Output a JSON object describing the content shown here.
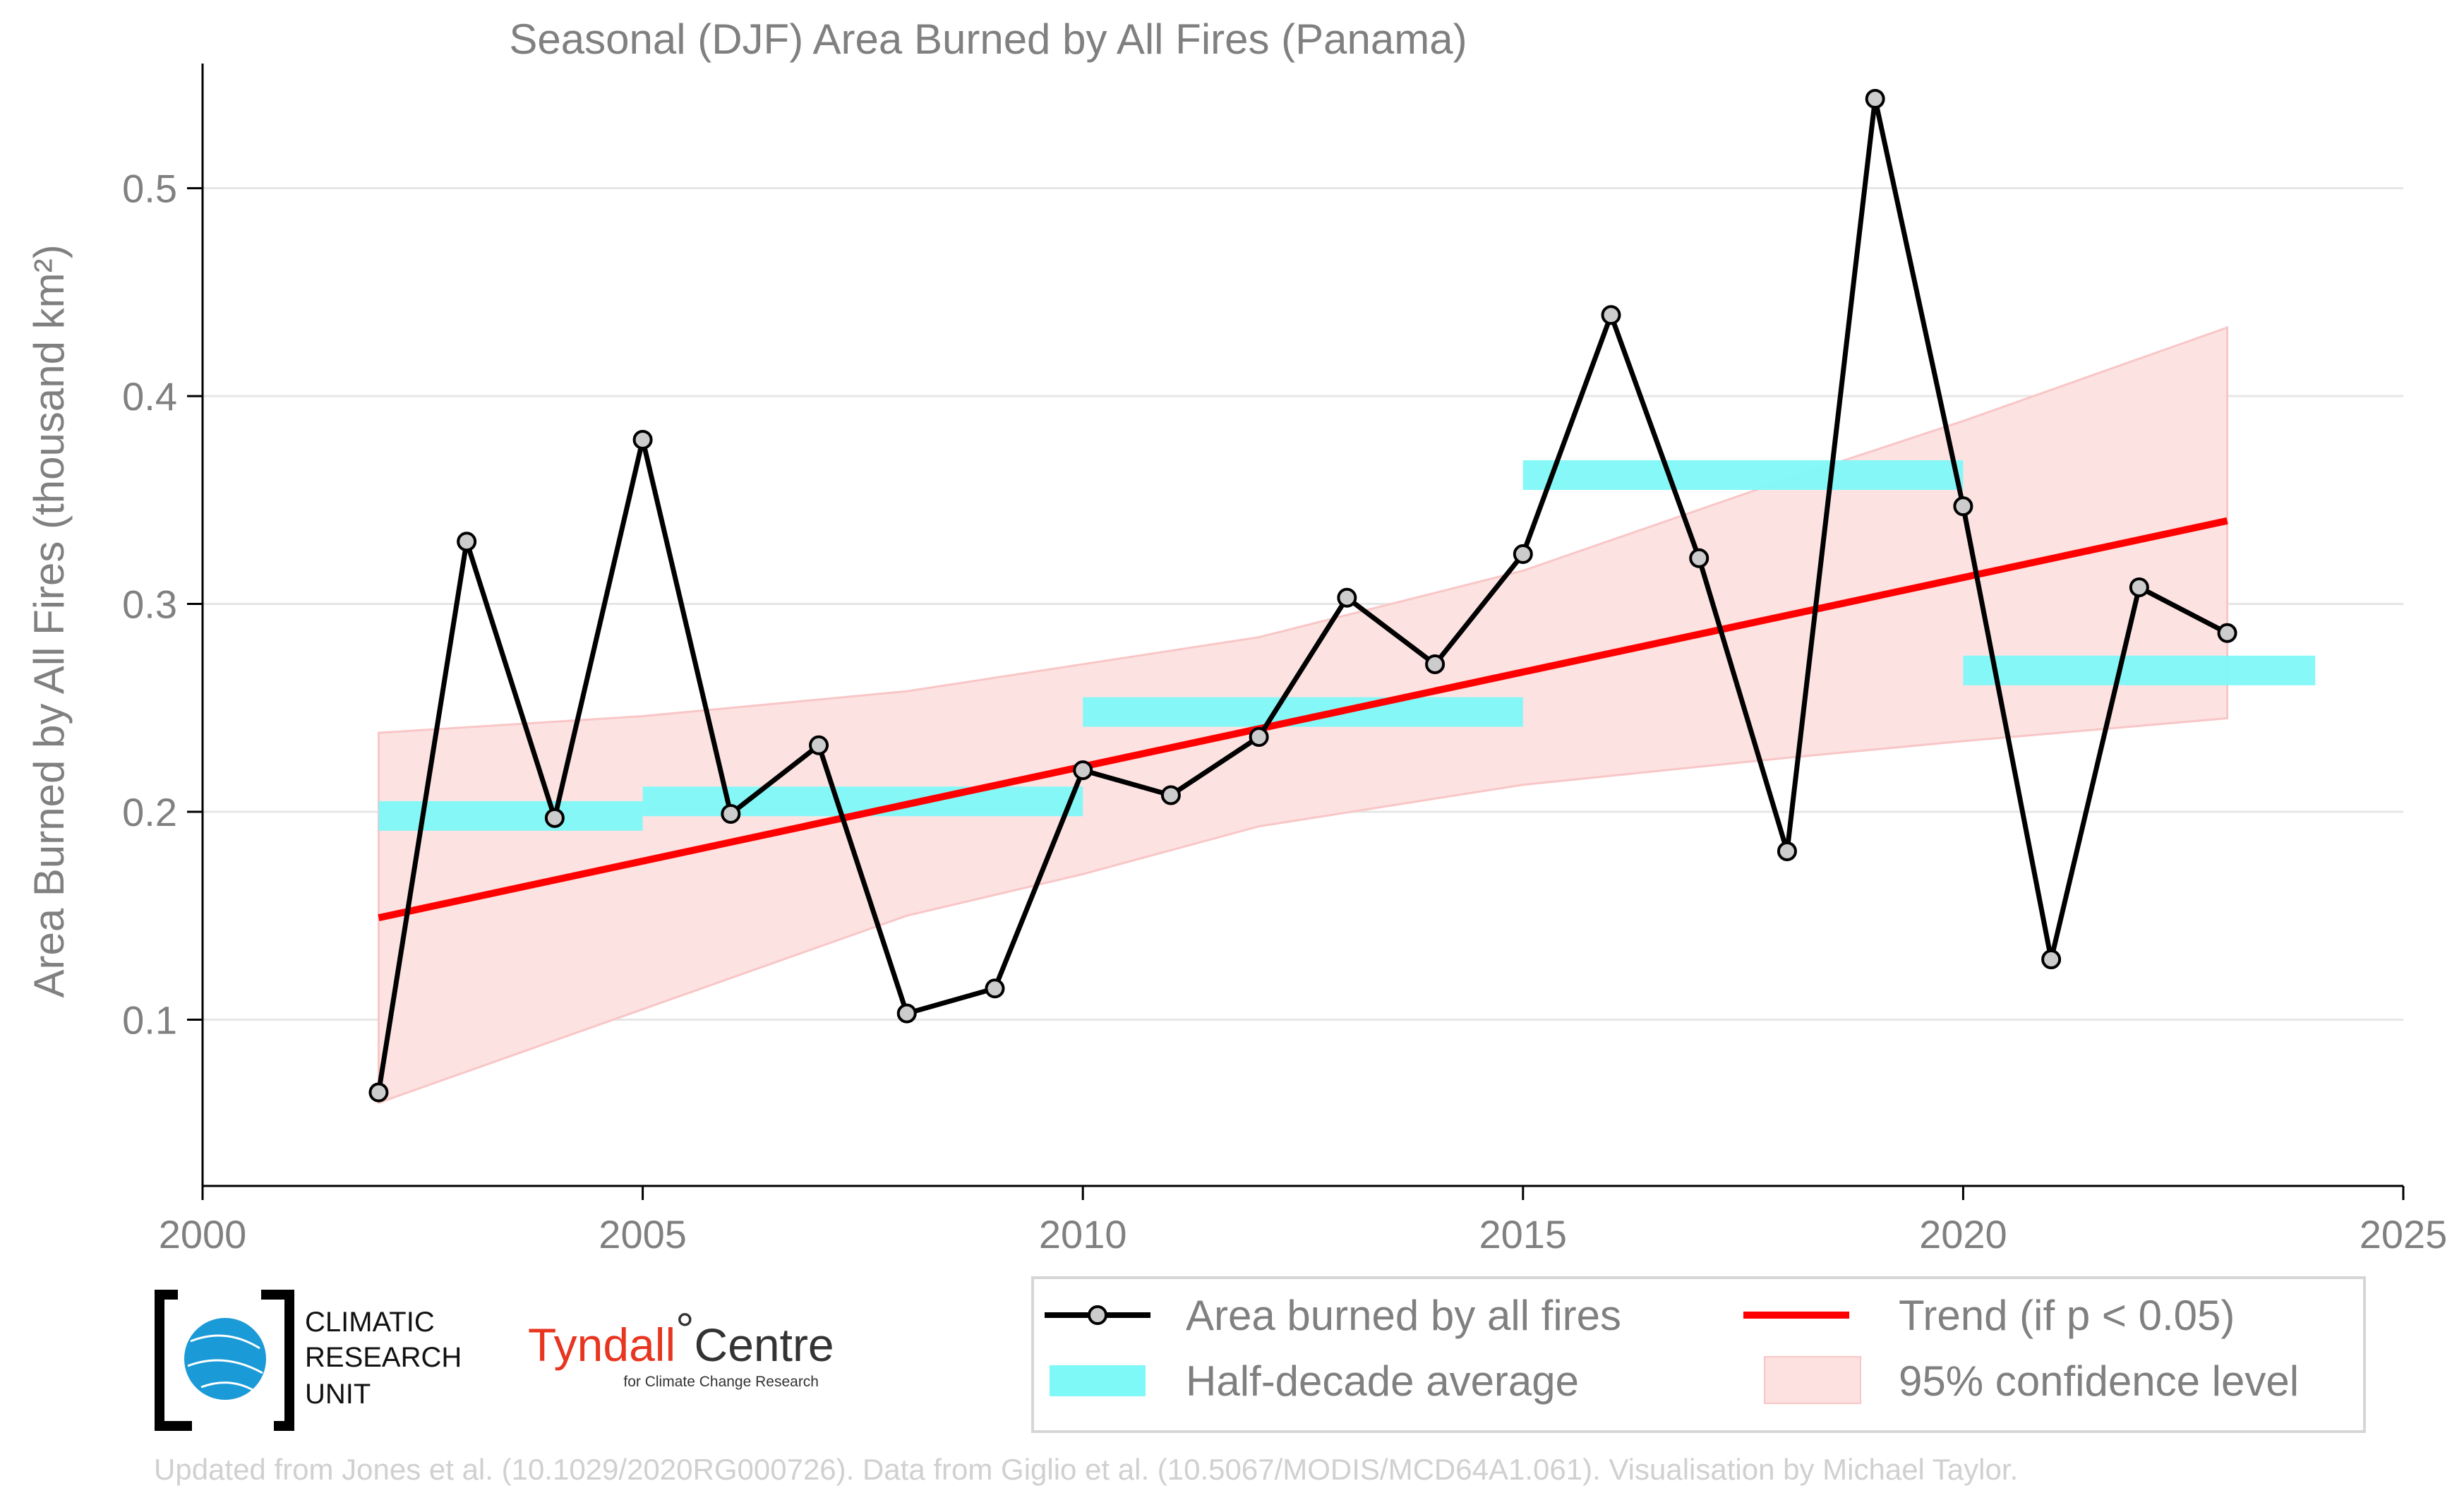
{
  "chart_data": {
    "type": "line",
    "title": "Seasonal (DJF) Area Burned by All Fires (Panama)",
    "ylabel": "Area Burned by All Fires (thousand km²)",
    "xlabel": "",
    "xlim": [
      2000,
      2025
    ],
    "ylim": [
      0.02,
      0.56
    ],
    "x_ticks": [
      2000,
      2005,
      2010,
      2015,
      2020,
      2025
    ],
    "y_ticks": [
      0.1,
      0.2,
      0.3,
      0.4,
      0.5
    ],
    "y_tick_labels": [
      "0.1",
      "0.2",
      "0.3",
      "0.4",
      "0.5"
    ],
    "grid": "horizontal",
    "legend_position": "bottom-right",
    "series": [
      {
        "name": "Area burned by all fires",
        "color": "#000000",
        "marker_color": "#cccccc",
        "x": [
          2002,
          2003,
          2004,
          2005,
          2006,
          2007,
          2008,
          2009,
          2010,
          2011,
          2012,
          2013,
          2014,
          2015,
          2016,
          2017,
          2018,
          2019,
          2020,
          2021,
          2022,
          2023
        ],
        "values": [
          0.065,
          0.33,
          0.197,
          0.379,
          0.199,
          0.232,
          0.103,
          0.115,
          0.22,
          0.208,
          0.236,
          0.303,
          0.271,
          0.324,
          0.439,
          0.322,
          0.181,
          0.543,
          0.347,
          0.129,
          0.308,
          0.286
        ]
      },
      {
        "name": "Half-decade average",
        "color": "#7ff8f8",
        "segments": [
          {
            "x0": 2002,
            "x1": 2005,
            "value": 0.198
          },
          {
            "x0": 2005,
            "x1": 2010,
            "value": 0.205
          },
          {
            "x0": 2010,
            "x1": 2015,
            "value": 0.248
          },
          {
            "x0": 2015,
            "x1": 2020,
            "value": 0.362
          },
          {
            "x0": 2020,
            "x1": 2024,
            "value": 0.268
          }
        ]
      },
      {
        "name": "Trend (if p < 0.05)",
        "color": "#ff0000",
        "x": [
          2002,
          2023
        ],
        "values": [
          0.149,
          0.34
        ]
      },
      {
        "name": "95% confidence level",
        "color": "#fde0e0",
        "x": [
          2002,
          2005,
          2008,
          2010,
          2012,
          2015,
          2018,
          2020,
          2023
        ],
        "upper": [
          0.238,
          0.246,
          0.258,
          0.271,
          0.284,
          0.316,
          0.36,
          0.388,
          0.433
        ],
        "lower": [
          0.06,
          0.105,
          0.15,
          0.17,
          0.193,
          0.213,
          0.226,
          0.234,
          0.245
        ]
      }
    ]
  },
  "legend": {
    "items": [
      "Area burned by all fires",
      "Trend (if p < 0.05)",
      "Half-decade average",
      "95% confidence level"
    ]
  },
  "logos": {
    "cru_lines": [
      "CLIMATIC",
      "RESEARCH",
      "UNIT"
    ],
    "tyndall_main": "Tyndall",
    "tyndall_degree": "°",
    "tyndall_centre": "Centre",
    "tyndall_sub": "for Climate Change Research"
  },
  "credit": "Updated from Jones et al. (10.1029/2020RG000726). Data from Giglio et al. (10.5067/MODIS/MCD64A1.061). Visualisation by Michael Taylor.",
  "colors": {
    "axis_text": "#808080",
    "grid": "#e6e6e6",
    "cru_globe": "#1a9ad6"
  }
}
